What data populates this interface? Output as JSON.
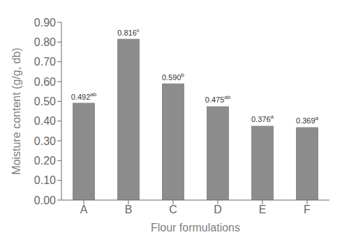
{
  "chart_data": {
    "type": "bar",
    "categories": [
      "A",
      "B",
      "C",
      "D",
      "E",
      "F"
    ],
    "values": [
      0.492,
      0.816,
      0.59,
      0.475,
      0.376,
      0.369
    ],
    "data_labels": true,
    "value_labels": [
      "0.492",
      "0.816",
      "0.590",
      "0.475",
      "0.376",
      "0.369"
    ],
    "annotations": [
      "ab",
      "c",
      "b",
      "ab",
      "a",
      "a"
    ],
    "color": "#8C8C8C",
    "xlabel": "Flour formulations",
    "ylabel": "Moisture content (g/g, db)",
    "ylim": [
      0.0,
      0.9
    ],
    "yticks": [
      {
        "value": 0.0,
        "label": "0.00"
      },
      {
        "value": 0.1,
        "label": "0.10"
      },
      {
        "value": 0.2,
        "label": "0.20"
      },
      {
        "value": 0.3,
        "label": "0.30"
      },
      {
        "value": 0.4,
        "label": "0.40"
      },
      {
        "value": 0.5,
        "label": "0.50"
      },
      {
        "value": 0.6,
        "label": "0.60"
      },
      {
        "value": 0.7,
        "label": "0.70"
      },
      {
        "value": 0.8,
        "label": "0.80"
      },
      {
        "value": 0.9,
        "label": "0.90"
      }
    ],
    "grid": false
  }
}
